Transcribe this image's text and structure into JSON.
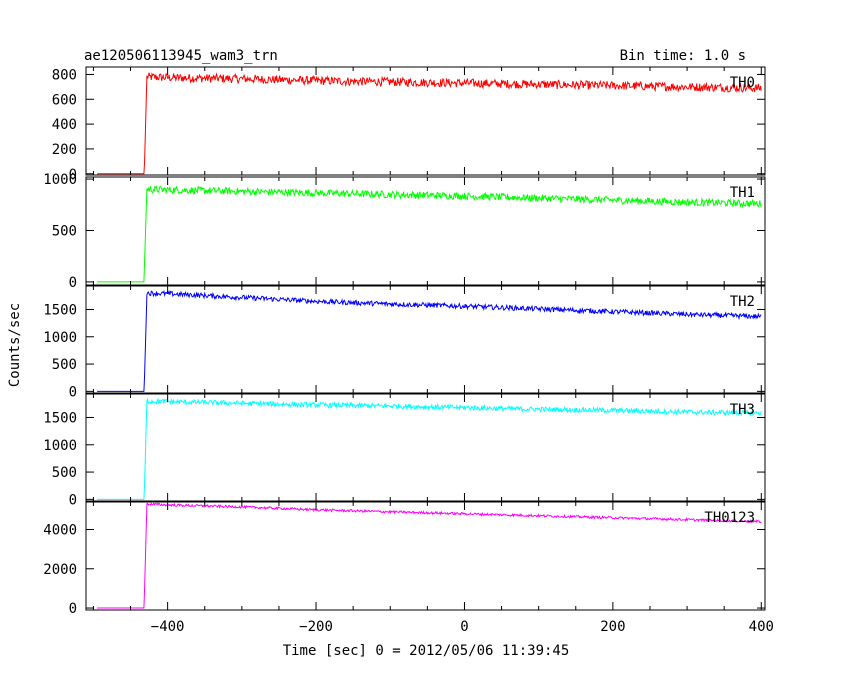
{
  "header": {
    "title": "ae120506113945_wam3_trn",
    "bin_time": "Bin time: 1.0 s"
  },
  "axes": {
    "ylabel": "Counts/sec",
    "xlabel": "Time [sec] 0 = 2012/05/06 11:39:45"
  },
  "chart_data": {
    "type": "line",
    "x_range": [
      -510,
      405
    ],
    "x_ticks": [
      -400,
      -200,
      0,
      200,
      400
    ],
    "x_tick_labels": [
      "−400",
      "−200",
      "0",
      "200",
      "400"
    ],
    "panels": [
      {
        "name": "TH0",
        "color": "#ff0000",
        "ylim": [
          -10,
          860
        ],
        "y_ticks": [
          0,
          200,
          400,
          600,
          800
        ],
        "series": {
          "x": [
            -495,
            -432,
            -431,
            -428,
            -400,
            -300,
            -200,
            -100,
            0,
            100,
            200,
            300,
            400
          ],
          "y": [
            0,
            0,
            100,
            780,
            775,
            765,
            750,
            740,
            730,
            720,
            710,
            700,
            690
          ]
        },
        "noise": 35
      },
      {
        "name": "TH1",
        "color": "#00ff00",
        "ylim": [
          -30,
          1020
        ],
        "y_ticks": [
          0,
          500,
          1000
        ],
        "series": {
          "x": [
            -495,
            -432,
            -431,
            -428,
            -400,
            -300,
            -200,
            -100,
            0,
            100,
            200,
            300,
            400
          ],
          "y": [
            0,
            0,
            200,
            900,
            895,
            880,
            865,
            850,
            835,
            815,
            795,
            775,
            760
          ]
        },
        "noise": 35
      },
      {
        "name": "TH2",
        "color": "#0000ff",
        "ylim": [
          -30,
          1930
        ],
        "y_ticks": [
          0,
          500,
          1000,
          1500
        ],
        "series": {
          "x": [
            -495,
            -432,
            -431,
            -428,
            -400,
            -300,
            -200,
            -100,
            0,
            100,
            200,
            300,
            400
          ],
          "y": [
            0,
            0,
            300,
            1800,
            1790,
            1720,
            1650,
            1600,
            1560,
            1510,
            1460,
            1410,
            1370
          ]
        },
        "noise": 45
      },
      {
        "name": "TH3",
        "color": "#00ffff",
        "ylim": [
          -30,
          1930
        ],
        "y_ticks": [
          0,
          500,
          1000,
          1500
        ],
        "series": {
          "x": [
            -495,
            -432,
            -431,
            -428,
            -400,
            -300,
            -200,
            -100,
            0,
            100,
            200,
            300,
            400
          ],
          "y": [
            0,
            0,
            300,
            1800,
            1790,
            1760,
            1730,
            1710,
            1680,
            1650,
            1630,
            1600,
            1580
          ]
        },
        "noise": 45
      },
      {
        "name": "TH0123",
        "color": "#ff00ff",
        "ylim": [
          -100,
          5400
        ],
        "y_ticks": [
          0,
          2000,
          4000
        ],
        "series": {
          "x": [
            -495,
            -432,
            -431,
            -428,
            -400,
            -300,
            -200,
            -100,
            0,
            100,
            200,
            300,
            400
          ],
          "y": [
            0,
            0,
            1000,
            5300,
            5250,
            5150,
            5000,
            4900,
            4800,
            4700,
            4600,
            4500,
            4400
          ]
        },
        "noise": 60
      }
    ]
  }
}
